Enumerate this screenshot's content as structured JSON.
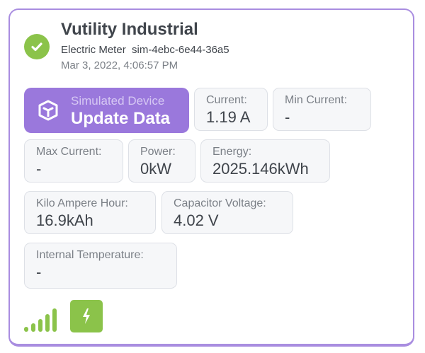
{
  "header": {
    "title": "Vutility Industrial",
    "device_type": "Electric Meter",
    "device_id": "sim-4ebc-6e44-36a5",
    "timestamp": "Mar 3, 2022, 4:06:57 PM",
    "status_icon": "check-circle-icon"
  },
  "action": {
    "caption": "Simulated Device",
    "label": "Update Data",
    "icon": "cube-icon"
  },
  "metrics": [
    {
      "label": "Current:",
      "value": "1.19 A"
    },
    {
      "label": "Min Current:",
      "value": "-"
    },
    {
      "label": "Max Current:",
      "value": "-"
    },
    {
      "label": "Power:",
      "value": "0kW"
    },
    {
      "label": "Energy:",
      "value": "2025.146kWh"
    },
    {
      "label": "Kilo Ampere Hour:",
      "value": "16.9kAh"
    },
    {
      "label": "Capacitor Voltage:",
      "value": "4.02 V"
    },
    {
      "label": "Internal Temperature:",
      "value": "-"
    }
  ],
  "footer": {
    "signal_icon": "signal-strength-icon",
    "signal_bars": 5,
    "power_icon": "lightning-bolt-icon"
  },
  "colors": {
    "accent": "#9a78dc",
    "border": "#a98de0",
    "ok": "#8bc34a"
  }
}
